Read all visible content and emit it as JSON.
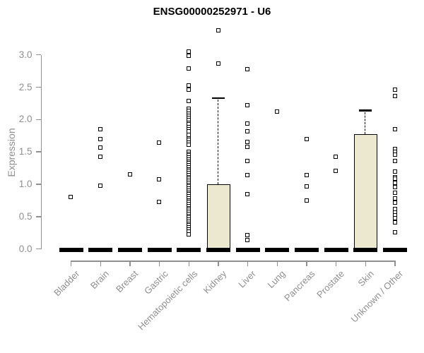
{
  "chart_data": {
    "type": "boxplot",
    "title": "ENSG00000252971 - U6",
    "ylabel": "Expression",
    "ylim": [
      0.0,
      3.0
    ],
    "yticks": [
      "0.0",
      "0.5",
      "1.0",
      "1.5",
      "2.0",
      "2.5",
      "3.0"
    ],
    "grid": false,
    "legend": "none",
    "categories": [
      "Bladder",
      "Brain",
      "Breast",
      "Gastric",
      "Hematopoietic cells",
      "Kidney",
      "Liver",
      "Lung",
      "Pancreas",
      "Prostate",
      "Skin",
      "Unknown / Other"
    ],
    "boxes": [
      {
        "category": "Bladder",
        "q1": 0,
        "median": 0,
        "q3": 0,
        "whisker_high": 0,
        "outliers": [
          0.8
        ]
      },
      {
        "category": "Brain",
        "q1": 0,
        "median": 0,
        "q3": 0,
        "whisker_high": 0,
        "outliers": [
          1.85,
          1.69,
          1.56,
          1.42,
          0.97
        ]
      },
      {
        "category": "Breast",
        "q1": 0,
        "median": 0,
        "q3": 0,
        "whisker_high": 0,
        "outliers": [
          1.15
        ]
      },
      {
        "category": "Gastric",
        "q1": 0,
        "median": 0,
        "q3": 0,
        "whisker_high": 0,
        "outliers": [
          1.64,
          1.07,
          0.72
        ]
      },
      {
        "category": "Hematopoietic cells",
        "q1": 0,
        "median": 0,
        "q3": 0,
        "whisker_high": 0,
        "outliers": [
          3.05,
          2.98,
          2.79,
          2.52,
          2.46,
          2.28,
          2.16,
          2.13,
          2.09,
          2.06,
          2.02,
          1.99,
          1.95,
          1.92,
          1.88,
          1.85,
          1.81,
          1.76,
          1.71,
          1.68,
          1.64,
          1.61,
          1.5,
          1.47,
          1.44,
          1.41,
          1.38,
          1.35,
          1.32,
          1.29,
          1.26,
          1.23,
          1.2,
          1.17,
          1.14,
          1.11,
          1.08,
          1.05,
          1.02,
          0.99,
          0.96,
          0.93,
          0.9,
          0.87,
          0.84,
          0.81,
          0.78,
          0.75,
          0.72,
          0.69,
          0.66,
          0.63,
          0.6,
          0.57,
          0.54,
          0.51,
          0.48,
          0.45,
          0.42,
          0.39,
          0.36,
          0.33,
          0.3,
          0.27,
          0.22
        ]
      },
      {
        "category": "Kidney",
        "q1": 0,
        "median": 0,
        "q3": 1.0,
        "whisker_high": 2.33,
        "outliers": [
          3.38,
          2.86
        ]
      },
      {
        "category": "Liver",
        "q1": 0,
        "median": 0,
        "q3": 0,
        "whisker_high": 0,
        "outliers": [
          2.78,
          2.22,
          1.93,
          1.81,
          1.65,
          1.58,
          1.36,
          1.14,
          0.84,
          0.21,
          0.14
        ]
      },
      {
        "category": "Lung",
        "q1": 0,
        "median": 0,
        "q3": 0,
        "whisker_high": 0,
        "outliers": [
          2.12
        ]
      },
      {
        "category": "Pancreas",
        "q1": 0,
        "median": 0,
        "q3": 0,
        "whisker_high": 0,
        "outliers": [
          1.7,
          1.14,
          0.96,
          0.75
        ]
      },
      {
        "category": "Prostate",
        "q1": 0,
        "median": 0,
        "q3": 0,
        "whisker_high": 0,
        "outliers": [
          1.42,
          1.2
        ]
      },
      {
        "category": "Skin",
        "q1": 0,
        "median": 0,
        "q3": 1.78,
        "whisker_high": 2.14,
        "outliers": []
      },
      {
        "category": "Unknown / Other",
        "q1": 0,
        "median": 0,
        "q3": 0,
        "whisker_high": 0,
        "outliers": [
          2.46,
          2.36,
          1.85,
          1.54,
          1.5,
          1.45,
          1.36,
          1.19,
          1.11,
          1.08,
          1.02,
          0.95,
          0.87,
          0.78,
          0.71,
          0.62,
          0.56,
          0.52,
          0.47,
          0.41,
          0.26
        ]
      }
    ],
    "colors": {
      "box_fill": "#ece8d0",
      "box_border": "#000000",
      "median": "#000000",
      "point": "#000000",
      "axis": "#8f8f8f",
      "tick_label": "#8f8f8f",
      "title": "#000000"
    }
  }
}
